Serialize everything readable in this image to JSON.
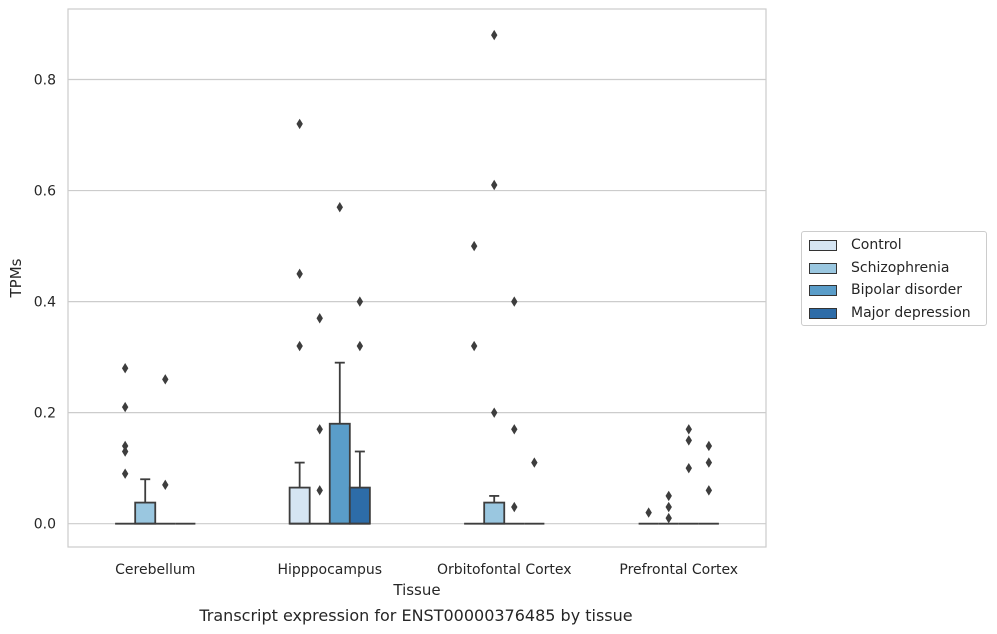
{
  "chart_data": {
    "type": "box",
    "categories": [
      "Cerebellum",
      "Hipppocampus",
      "Orbitofontal Cortex",
      "Prefrontal Cortex"
    ],
    "xlabel": "Tissue",
    "ylabel": "TPMs",
    "caption": "Transcript expression for ENST00000376485 by tissue",
    "ylim": [
      -0.042,
      0.927
    ],
    "yticks": [
      0.0,
      0.2,
      0.4,
      0.6,
      0.8
    ],
    "ytick_labels": [
      "0.0",
      "0.2",
      "0.4",
      "0.6",
      "0.8"
    ],
    "grid": "horizontal",
    "legend_placement": "right",
    "series": [
      {
        "name": "Control",
        "color": "#d5e5f3",
        "boxes": [
          {
            "q1": 0,
            "median": 0,
            "q3": 0,
            "whisker_low": 0,
            "whisker_high": 0,
            "outliers": [
              0.09,
              0.13,
              0.14,
              0.21,
              0.28
            ]
          },
          {
            "q1": 0,
            "median": 0,
            "q3": 0.065,
            "whisker_low": 0,
            "whisker_high": 0.11,
            "outliers": [
              0.32,
              0.45,
              0.72
            ]
          },
          {
            "q1": 0,
            "median": 0,
            "q3": 0,
            "whisker_low": 0,
            "whisker_high": 0,
            "outliers": [
              0.32,
              0.5
            ]
          },
          {
            "q1": 0,
            "median": 0,
            "q3": 0,
            "whisker_low": 0,
            "whisker_high": 0,
            "outliers": [
              0.02
            ]
          }
        ]
      },
      {
        "name": "Schizophrenia",
        "color": "#9ac7e0",
        "boxes": [
          {
            "q1": 0,
            "median": 0,
            "q3": 0.038,
            "whisker_low": 0,
            "whisker_high": 0.08,
            "outliers": []
          },
          {
            "q1": 0,
            "median": 0,
            "q3": 0,
            "whisker_low": 0,
            "whisker_high": 0,
            "outliers": [
              0.06,
              0.17,
              0.37
            ]
          },
          {
            "q1": 0,
            "median": 0,
            "q3": 0.038,
            "whisker_low": 0,
            "whisker_high": 0.05,
            "outliers": [
              0.2,
              0.61,
              0.88
            ]
          },
          {
            "q1": 0,
            "median": 0,
            "q3": 0,
            "whisker_low": 0,
            "whisker_high": 0,
            "outliers": [
              0.01,
              0.03,
              0.05
            ]
          }
        ]
      },
      {
        "name": "Bipolar disorder",
        "color": "#5a9dc9",
        "boxes": [
          {
            "q1": 0,
            "median": 0,
            "q3": 0,
            "whisker_low": 0,
            "whisker_high": 0,
            "outliers": [
              0.07,
              0.26
            ]
          },
          {
            "q1": 0,
            "median": 0,
            "q3": 0.18,
            "whisker_low": 0,
            "whisker_high": 0.29,
            "outliers": [
              0.57
            ]
          },
          {
            "q1": 0,
            "median": 0,
            "q3": 0,
            "whisker_low": 0,
            "whisker_high": 0,
            "outliers": [
              0.03,
              0.17,
              0.4
            ]
          },
          {
            "q1": 0,
            "median": 0,
            "q3": 0,
            "whisker_low": 0,
            "whisker_high": 0,
            "outliers": [
              0.1,
              0.15,
              0.17
            ]
          }
        ]
      },
      {
        "name": "Major depression",
        "color": "#2d6ca8",
        "boxes": [
          {
            "q1": 0,
            "median": 0,
            "q3": 0,
            "whisker_low": 0,
            "whisker_high": 0,
            "outliers": []
          },
          {
            "q1": 0,
            "median": 0,
            "q3": 0.065,
            "whisker_low": 0,
            "whisker_high": 0.13,
            "outliers": [
              0.32,
              0.4
            ]
          },
          {
            "q1": 0,
            "median": 0,
            "q3": 0,
            "whisker_low": 0,
            "whisker_high": 0,
            "outliers": [
              0.11
            ]
          },
          {
            "q1": 0,
            "median": 0,
            "q3": 0,
            "whisker_low": 0,
            "whisker_high": 0,
            "outliers": [
              0.06,
              0.11,
              0.14
            ]
          }
        ]
      }
    ]
  }
}
